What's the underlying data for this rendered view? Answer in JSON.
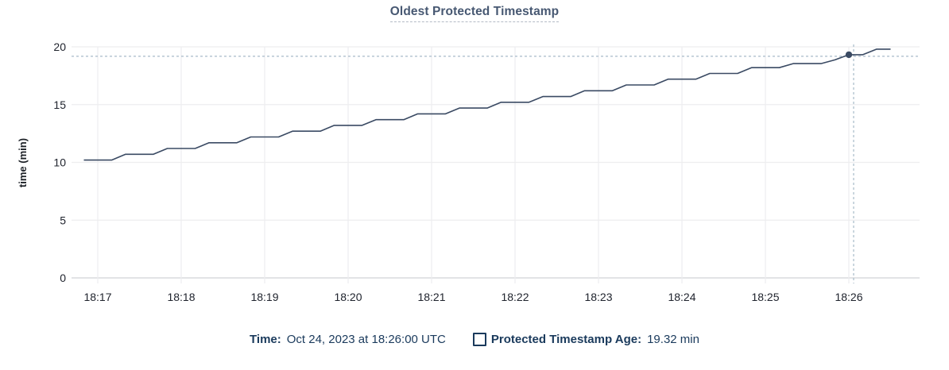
{
  "title": "Oldest Protected Timestamp",
  "footer": {
    "time_label": "Time:",
    "time_value": "Oct 24, 2023 at 18:26:00 UTC",
    "series_label": "Protected Timestamp Age:",
    "series_value": "19.32 min"
  },
  "colors": {
    "background": "#ffffff",
    "title": "#475872",
    "title_underline": "#b3bac6",
    "line": "#3a4a63",
    "hover_dot": "#3a4a63",
    "crosshair": "#a7bac9",
    "grid": "#ededef",
    "axis_line": "#d8dade",
    "tick_text": "#20242e",
    "footer_text": "#1a3a5c"
  },
  "chart_data": {
    "type": "line",
    "title": "Oldest Protected Timestamp",
    "xlabel": "",
    "ylabel": "time (min)",
    "ylim": [
      0,
      20
    ],
    "y_ticks": [
      0,
      5,
      10,
      15,
      20
    ],
    "x_ticks": [
      "18:17",
      "18:18",
      "18:19",
      "18:20",
      "18:21",
      "18:22",
      "18:23",
      "18:24",
      "18:25",
      "18:26"
    ],
    "grid": true,
    "legend_position": "bottom",
    "legend_entries": [
      "Protected Timestamp Age"
    ],
    "hover": {
      "time": "18:26:00",
      "value": 19.32,
      "date": "Oct 24, 2023",
      "tz": "UTC"
    },
    "points": [
      {
        "t": "18:16:50",
        "v": 10.2
      },
      {
        "t": "18:17:10",
        "v": 10.2
      },
      {
        "t": "18:17:20",
        "v": 10.7
      },
      {
        "t": "18:17:40",
        "v": 10.7
      },
      {
        "t": "18:17:50",
        "v": 11.2
      },
      {
        "t": "18:18:10",
        "v": 11.2
      },
      {
        "t": "18:18:20",
        "v": 11.7
      },
      {
        "t": "18:18:40",
        "v": 11.7
      },
      {
        "t": "18:18:50",
        "v": 12.2
      },
      {
        "t": "18:19:10",
        "v": 12.2
      },
      {
        "t": "18:19:20",
        "v": 12.7
      },
      {
        "t": "18:19:40",
        "v": 12.7
      },
      {
        "t": "18:19:50",
        "v": 13.2
      },
      {
        "t": "18:20:10",
        "v": 13.2
      },
      {
        "t": "18:20:20",
        "v": 13.7
      },
      {
        "t": "18:20:40",
        "v": 13.7
      },
      {
        "t": "18:20:50",
        "v": 14.2
      },
      {
        "t": "18:21:10",
        "v": 14.2
      },
      {
        "t": "18:21:20",
        "v": 14.7
      },
      {
        "t": "18:21:40",
        "v": 14.7
      },
      {
        "t": "18:21:50",
        "v": 15.2
      },
      {
        "t": "18:22:10",
        "v": 15.2
      },
      {
        "t": "18:22:20",
        "v": 15.7
      },
      {
        "t": "18:22:40",
        "v": 15.7
      },
      {
        "t": "18:22:50",
        "v": 16.2
      },
      {
        "t": "18:23:10",
        "v": 16.2
      },
      {
        "t": "18:23:20",
        "v": 16.7
      },
      {
        "t": "18:23:40",
        "v": 16.7
      },
      {
        "t": "18:23:50",
        "v": 17.2
      },
      {
        "t": "18:24:10",
        "v": 17.2
      },
      {
        "t": "18:24:20",
        "v": 17.7
      },
      {
        "t": "18:24:40",
        "v": 17.7
      },
      {
        "t": "18:24:50",
        "v": 18.2
      },
      {
        "t": "18:25:10",
        "v": 18.2
      },
      {
        "t": "18:25:20",
        "v": 18.55
      },
      {
        "t": "18:25:40",
        "v": 18.55
      },
      {
        "t": "18:25:50",
        "v": 18.87
      },
      {
        "t": "18:26:00",
        "v": 19.32
      },
      {
        "t": "18:26:10",
        "v": 19.32
      },
      {
        "t": "18:26:20",
        "v": 19.8
      },
      {
        "t": "18:26:30",
        "v": 19.8
      }
    ]
  }
}
